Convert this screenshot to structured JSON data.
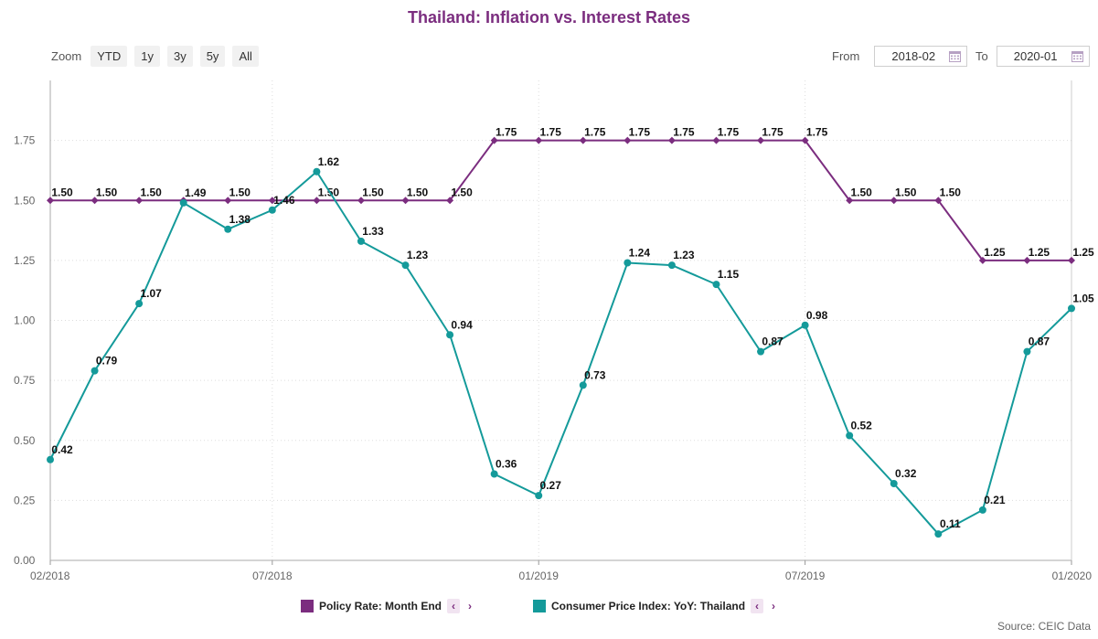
{
  "title": "Thailand: Inflation vs. Interest Rates",
  "zoom": {
    "label": "Zoom",
    "buttons": [
      "YTD",
      "1y",
      "3y",
      "5y",
      "All"
    ]
  },
  "range": {
    "from_label": "From",
    "from_value": "2018-02",
    "to_label": "To",
    "to_value": "2020-01"
  },
  "legend": {
    "items": [
      {
        "name": "Policy Rate: Month End",
        "color": "#7b2d7f"
      },
      {
        "name": "Consumer Price Index: YoY: Thailand",
        "color": "#149a9a"
      }
    ],
    "prev_icon": "‹",
    "next_icon": "›"
  },
  "source": "Source: CEIC Data",
  "chart_data": {
    "type": "line",
    "x": [
      "2018-02",
      "2018-03",
      "2018-04",
      "2018-05",
      "2018-06",
      "2018-07",
      "2018-08",
      "2018-09",
      "2018-10",
      "2018-11",
      "2018-12",
      "2019-01",
      "2019-02",
      "2019-03",
      "2019-04",
      "2019-05",
      "2019-06",
      "2019-07",
      "2019-08",
      "2019-09",
      "2019-10",
      "2019-11",
      "2019-12",
      "2020-01"
    ],
    "x_tick_labels": [
      "02/2018",
      "07/2018",
      "01/2019",
      "07/2019",
      "01/2020"
    ],
    "x_tick_index": [
      0,
      5,
      11,
      17,
      23
    ],
    "ylim": [
      0,
      2
    ],
    "y_ticks": [
      "0.00",
      "0.25",
      "0.50",
      "0.75",
      "1.00",
      "1.25",
      "1.50",
      "1.75"
    ],
    "y_tick_values": [
      0,
      0.25,
      0.5,
      0.75,
      1,
      1.25,
      1.5,
      1.75
    ],
    "grid": true,
    "series": [
      {
        "name": "Policy Rate: Month End",
        "color": "#7b2d7f",
        "marker": "diamond",
        "values": [
          1.5,
          1.5,
          1.5,
          1.5,
          1.5,
          1.5,
          1.5,
          1.5,
          1.5,
          1.5,
          1.75,
          1.75,
          1.75,
          1.75,
          1.75,
          1.75,
          1.75,
          1.75,
          1.5,
          1.5,
          1.5,
          1.25,
          1.25,
          1.25
        ],
        "labels": [
          "1.50",
          "1.50",
          "1.50",
          "",
          "1.50",
          "",
          "1.50",
          "1.50",
          "1.50",
          "1.50",
          "1.75",
          "1.75",
          "1.75",
          "1.75",
          "1.75",
          "1.75",
          "1.75",
          "1.75",
          "1.50",
          "1.50",
          "1.50",
          "1.25",
          "1.25",
          "1.25"
        ]
      },
      {
        "name": "Consumer Price Index: YoY: Thailand",
        "color": "#149a9a",
        "marker": "circle",
        "values": [
          0.42,
          0.79,
          1.07,
          1.49,
          1.38,
          1.46,
          1.62,
          1.33,
          1.23,
          0.94,
          0.36,
          0.27,
          0.73,
          1.24,
          1.23,
          1.15,
          0.87,
          0.98,
          0.52,
          0.32,
          0.11,
          0.21,
          0.87,
          1.05
        ],
        "labels": [
          "0.42",
          "0.79",
          "1.07",
          "1.49",
          "1.38",
          "1.46",
          "1.62",
          "1.33",
          "1.23",
          "0.94",
          "0.36",
          "0.27",
          "0.73",
          "1.24",
          "1.23",
          "1.15",
          "0.87",
          "0.98",
          "0.52",
          "0.32",
          "0.11",
          "0.21",
          "0.87",
          "1.05"
        ]
      }
    ]
  }
}
